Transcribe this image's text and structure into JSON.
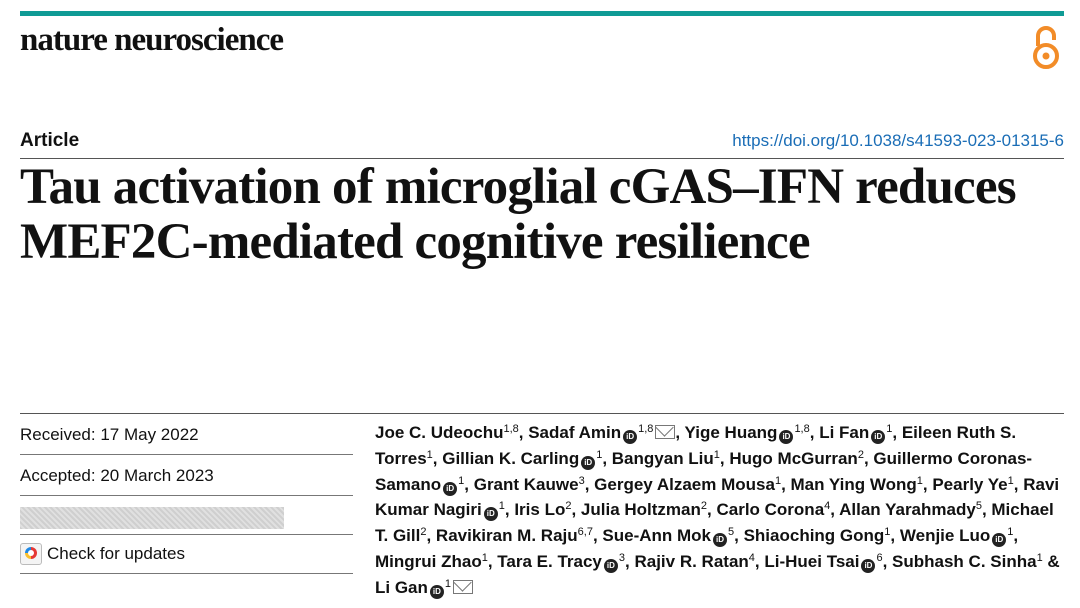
{
  "journal": {
    "name": "nature neuroscience"
  },
  "header": {
    "article_type": "Article",
    "doi": "https://doi.org/10.1038/s41593-023-01315-6"
  },
  "title": "Tau activation of microglial cGAS–IFN reduces MEF2C-mediated cognitive resilience",
  "dates": {
    "received": "Received: 17 May 2022",
    "accepted": "Accepted: 20 March 2023"
  },
  "check_updates": "Check for updates",
  "authors": [
    {
      "name": "Joe C. Udeochu",
      "aff": "1,8"
    },
    {
      "name": "Sadaf Amin",
      "aff": "1,8",
      "orcid": true,
      "corresponding": true
    },
    {
      "name": "Yige Huang",
      "aff": "1,8",
      "orcid": true
    },
    {
      "name": "Li Fan",
      "aff": "1",
      "orcid": true
    },
    {
      "name": "Eileen Ruth S. Torres",
      "aff": "1"
    },
    {
      "name": "Gillian K. Carling",
      "aff": "1",
      "orcid": true
    },
    {
      "name": "Bangyan Liu",
      "aff": "1"
    },
    {
      "name": "Hugo McGurran",
      "aff": "2"
    },
    {
      "name": "Guillermo Coronas-Samano",
      "aff": "1",
      "orcid": true
    },
    {
      "name": "Grant Kauwe",
      "aff": "3"
    },
    {
      "name": "Gergey Alzaem Mousa",
      "aff": "1"
    },
    {
      "name": "Man Ying Wong",
      "aff": "1"
    },
    {
      "name": "Pearly Ye",
      "aff": "1"
    },
    {
      "name": "Ravi Kumar Nagiri",
      "aff": "1",
      "orcid": true
    },
    {
      "name": "Iris Lo",
      "aff": "2"
    },
    {
      "name": "Julia Holtzman",
      "aff": "2"
    },
    {
      "name": "Carlo Corona",
      "aff": "4"
    },
    {
      "name": "Allan Yarahmady",
      "aff": "5"
    },
    {
      "name": "Michael T. Gill",
      "aff": "2"
    },
    {
      "name": "Ravikiran M. Raju",
      "aff": "6,7"
    },
    {
      "name": "Sue-Ann Mok",
      "aff": "5",
      "orcid": true
    },
    {
      "name": "Shiaoching Gong",
      "aff": "1"
    },
    {
      "name": "Wenjie Luo",
      "aff": "1",
      "orcid": true
    },
    {
      "name": "Mingrui Zhao",
      "aff": "1"
    },
    {
      "name": "Tara E. Tracy",
      "aff": "3",
      "orcid": true
    },
    {
      "name": "Rajiv R. Ratan",
      "aff": "4"
    },
    {
      "name": "Li-Huei Tsai",
      "aff": "6",
      "orcid": true
    },
    {
      "name": "Subhash C. Sinha",
      "aff": "1"
    },
    {
      "name": "Li Gan",
      "aff": "1",
      "orcid": true,
      "corresponding": true
    }
  ],
  "colors": {
    "accent_bar": "#0f9b95",
    "link": "#1a6db6",
    "open_access": "#f28c28"
  },
  "icons": {
    "open_access": "open-access-icon",
    "orcid": "orcid-icon",
    "email": "envelope-icon",
    "crossmark": "crossmark-icon"
  }
}
